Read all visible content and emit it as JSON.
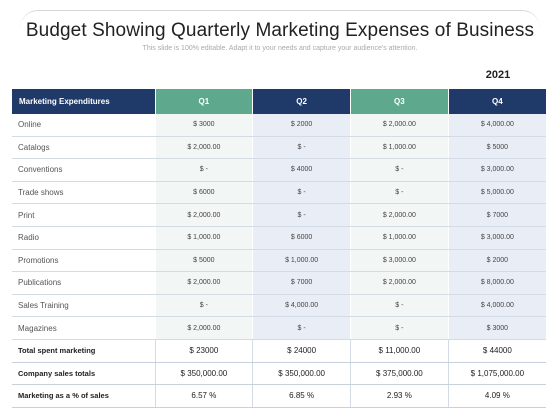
{
  "title": "Budget Showing Quarterly Marketing Expenses of Business",
  "subtitle": "This slide is 100% editable. Adapt it to your needs and capture your audience's attention.",
  "year": "2021",
  "table": {
    "headers": [
      "Marketing Expenditures",
      "Q1",
      "Q2",
      "Q3",
      "Q4"
    ],
    "rows": [
      [
        "Online",
        "$ 3000",
        "$ 2000",
        "$ 2,000.00",
        "$ 4,000.00"
      ],
      [
        "Catalogs",
        "$ 2,000.00",
        "$        -",
        "$ 1,000.00",
        "$ 5000"
      ],
      [
        "Conventions",
        "$        -",
        "$ 4000",
        "$        -",
        "$ 3,000.00"
      ],
      [
        "Trade shows",
        "$ 6000",
        "$        -",
        "$        -",
        "$ 5,000.00"
      ],
      [
        "Print",
        "$ 2,000.00",
        "$        -",
        "$ 2,000.00",
        "$ 7000"
      ],
      [
        "Radio",
        "$ 1,000.00",
        "$ 6000",
        "$ 1,000.00",
        "$ 3,000.00"
      ],
      [
        "Promotions",
        "$ 5000",
        "$ 1,000.00",
        "$ 3,000.00",
        "$ 2000"
      ],
      [
        "Publications",
        "$ 2,000.00",
        "$ 7000",
        "$ 2,000.00",
        "$ 8,000.00"
      ],
      [
        "Sales Training",
        "$        -",
        "$ 4,000.00",
        "$        -",
        "$ 4,000.00"
      ],
      [
        "Magazines",
        "$ 2,000.00",
        "$        -",
        "$        -",
        "$ 3000"
      ]
    ],
    "totals": [
      [
        "Total spent marketing",
        "$ 23000",
        "$ 24000",
        "$ 11,000.00",
        "$ 44000"
      ],
      [
        "Company sales totals",
        "$ 350,000.00",
        "$ 350,000.00",
        "$ 375,000.00",
        "$ 1,075,000.00"
      ],
      [
        "Marketing as a % of sales",
        "6.57 %",
        "6.85 %",
        "2.93 %",
        "4.09 %"
      ]
    ]
  },
  "colors": {
    "header_navy": "#1f3a68",
    "header_green": "#5ea88d",
    "row_green_tint": "#f2f6f5",
    "row_blue_tint": "#e9eef6"
  }
}
